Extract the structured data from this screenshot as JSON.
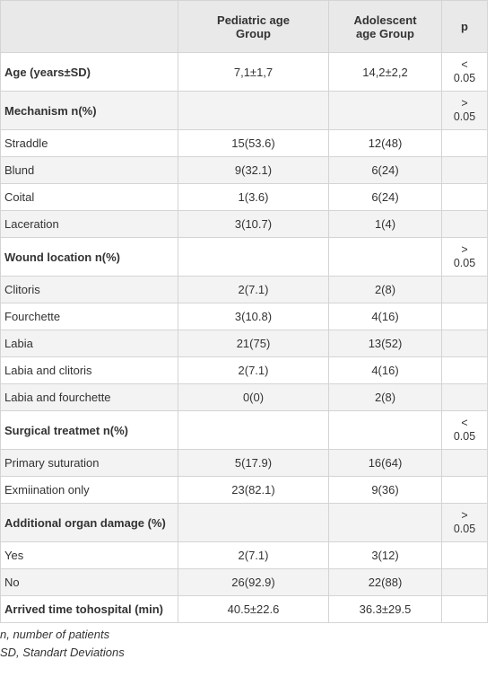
{
  "table": {
    "header": [
      null,
      "Pediatric age Group",
      "Adolescent age Group",
      "p"
    ],
    "rows": [
      [
        "Age (years±SD)",
        "7,1±1,7",
        "14,2±2,2",
        "< 0.05"
      ],
      [
        "Mechanism n(%)",
        null,
        null,
        "> 0.05"
      ],
      [
        "Straddle",
        "15(53.6)",
        "12(48)",
        null
      ],
      [
        "Blund",
        "9(32.1)",
        "6(24)",
        null
      ],
      [
        "Coital",
        "1(3.6)",
        "6(24)",
        null
      ],
      [
        "Laceration",
        "3(10.7)",
        "1(4)",
        null
      ],
      [
        "Wound location n(%)",
        null,
        null,
        "> 0.05"
      ],
      [
        "Clitoris",
        "2(7.1)",
        "2(8)",
        null
      ],
      [
        "Fourchette",
        "3(10.8)",
        "4(16)",
        null
      ],
      [
        "Labia",
        "21(75)",
        "13(52)",
        null
      ],
      [
        "Labia and clitoris",
        "2(7.1)",
        "4(16)",
        null
      ],
      [
        "Labia and fourchette",
        "0(0)",
        "2(8)",
        null
      ],
      [
        "Surgical treatmet n(%)",
        null,
        null,
        "< 0.05"
      ],
      [
        "Primary suturation",
        "5(17.9)",
        "16(64)",
        null
      ],
      [
        "Exmiination only",
        "23(82.1)",
        "9(36)",
        null
      ],
      [
        "Additional organ damage (%)",
        null,
        null,
        "> 0.05"
      ],
      [
        "Yes",
        "2(7.1)",
        "3(12)",
        null
      ],
      [
        "No",
        "26(92.9)",
        "22(88)",
        null
      ],
      [
        "Arrived time tohospital (min)",
        "40.5±22.6",
        "36.3±29.5",
        null
      ]
    ]
  },
  "notes": [
    "n, number of patients",
    "SD, Standart Deviations"
  ]
}
